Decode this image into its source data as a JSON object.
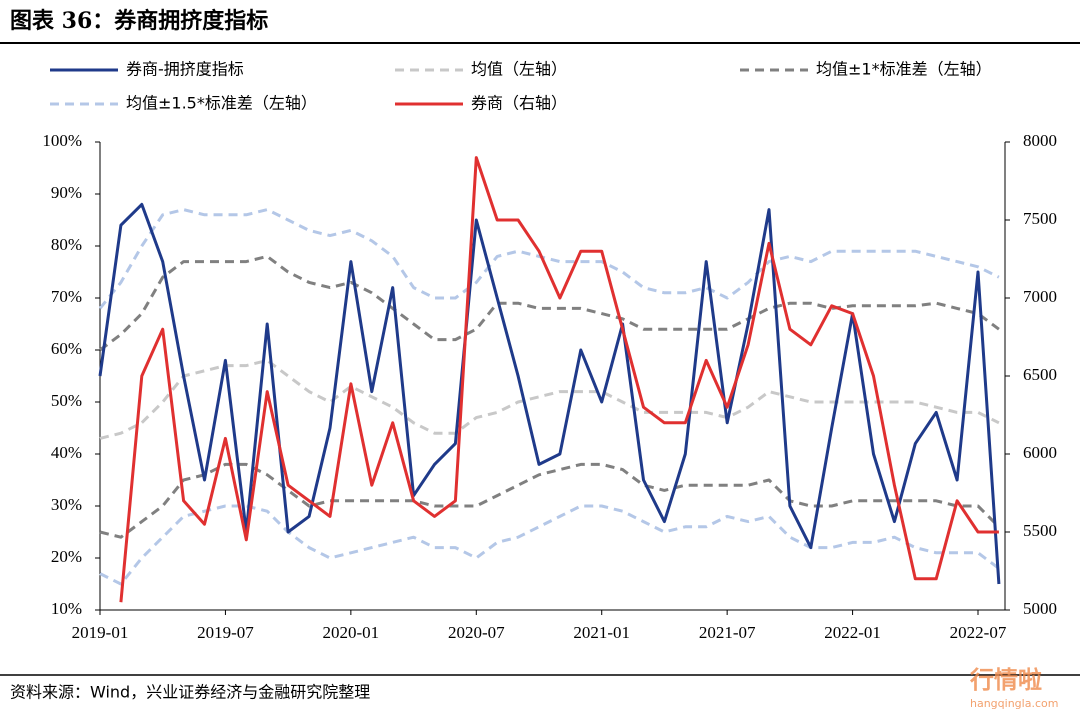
{
  "chart_data": {
    "type": "line",
    "title": "图表 36：券商拥挤度指标",
    "source": "资料来源：Wind，兴业证券经济与金融研究院整理",
    "watermark": "行情啦",
    "watermark_url": "hangqingla.com",
    "categories": [
      "2019-01",
      null,
      null,
      null,
      null,
      null,
      "2019-07",
      null,
      null,
      null,
      null,
      null,
      "2020-01",
      null,
      null,
      null,
      null,
      null,
      "2020-07",
      null,
      null,
      null,
      null,
      null,
      "2021-01",
      null,
      null,
      null,
      null,
      null,
      "2021-07",
      null,
      null,
      null,
      null,
      null,
      "2022-01",
      null,
      null,
      null,
      null,
      null,
      "2022-07",
      null
    ],
    "ylim": [
      10,
      100
    ],
    "yticks": [
      {
        "value": 10,
        "label": "10%"
      },
      {
        "value": 20,
        "label": "20%"
      },
      {
        "value": 30,
        "label": "30%"
      },
      {
        "value": 40,
        "label": "40%"
      },
      {
        "value": 50,
        "label": "50%"
      },
      {
        "value": 60,
        "label": "60%"
      },
      {
        "value": 70,
        "label": "70%"
      },
      {
        "value": 80,
        "label": "80%"
      },
      {
        "value": 90,
        "label": "90%"
      },
      {
        "value": 100,
        "label": "100%"
      }
    ],
    "y2lim": [
      5000,
      8000
    ],
    "y2ticks": [
      5000,
      5500,
      6000,
      6500,
      7000,
      7500,
      8000
    ],
    "series": [
      {
        "name": "券商-拥挤度指标",
        "color": "#1f3a8a",
        "dash": false,
        "values": [
          55,
          84,
          88,
          77,
          55,
          35,
          58,
          25,
          65,
          25,
          28,
          45,
          77,
          52,
          72,
          32,
          38,
          42,
          85,
          70,
          55,
          38,
          40,
          60,
          50,
          65,
          35,
          27,
          40,
          77,
          46,
          65,
          87,
          30,
          22,
          45,
          67,
          40,
          27,
          42,
          48,
          35,
          75,
          15
        ]
      },
      {
        "name": "均值（左轴）",
        "color": "#c8c8c8",
        "dash": true,
        "values": [
          43,
          44,
          46,
          50,
          55,
          56,
          57,
          57,
          58,
          55,
          52,
          50,
          53,
          51,
          49,
          46,
          44,
          44,
          47,
          48,
          50,
          51,
          52,
          52,
          52,
          50,
          48,
          48,
          48,
          48,
          47,
          49,
          52,
          51,
          50,
          50,
          50,
          50,
          50,
          50,
          49,
          48,
          48,
          46
        ]
      },
      {
        "name": "均值±1*标准差（左轴）",
        "color": "#808080",
        "dash": true,
        "values": [
          60,
          63,
          67,
          74,
          77,
          77,
          77,
          77,
          78,
          75,
          73,
          72,
          73,
          71,
          68,
          65,
          62,
          62,
          64,
          69,
          69,
          68,
          68,
          68,
          67,
          66,
          64,
          64,
          64,
          64,
          64,
          66,
          68,
          69,
          69,
          68,
          68.5,
          68.5,
          68.5,
          68.5,
          69,
          68,
          67,
          64
        ],
        "lower": [
          25,
          24,
          27,
          30,
          35,
          36,
          38,
          38,
          36,
          33,
          30,
          31,
          31,
          31,
          31,
          31,
          30,
          30,
          30,
          32,
          34,
          36,
          37,
          38,
          38,
          37,
          34,
          33,
          34,
          34,
          34,
          34,
          35,
          31,
          30,
          30,
          31,
          31,
          31,
          31,
          31,
          30,
          30,
          26
        ]
      },
      {
        "name": "均值±1.5*标准差（左轴）",
        "color": "#b4c7e7",
        "dash": true,
        "values": [
          68,
          73,
          80,
          86,
          87,
          86,
          86,
          86,
          87,
          85,
          83,
          82,
          83,
          81,
          78,
          72,
          70,
          70,
          73,
          78,
          79,
          78,
          77,
          77,
          77,
          75,
          72,
          71,
          71,
          72,
          70,
          73,
          77,
          78,
          77,
          79,
          79,
          79,
          79,
          79,
          78,
          77,
          76,
          74
        ],
        "lower": [
          17,
          15,
          20,
          24,
          28,
          29,
          30,
          30,
          29,
          25,
          22,
          20,
          21,
          22,
          23,
          24,
          22,
          22,
          20,
          23,
          24,
          26,
          28,
          30,
          30,
          29,
          27,
          25,
          26,
          26,
          28,
          27,
          28,
          24,
          22,
          22,
          23,
          23,
          24,
          22,
          21,
          21,
          21,
          18
        ]
      },
      {
        "name": "券商（右轴）",
        "color": "#e03030",
        "dash": false,
        "axis": "y2",
        "values": [
          null,
          5050,
          6500,
          6800,
          5700,
          5550,
          6100,
          5450,
          6400,
          5800,
          5700,
          5600,
          6450,
          5800,
          6200,
          5700,
          5600,
          5700,
          7900,
          7500,
          7500,
          7300,
          7000,
          7300,
          7300,
          6800,
          6300,
          6200,
          6200,
          6600,
          6300,
          6700,
          7350,
          6800,
          6700,
          6950,
          6900,
          6500,
          5800,
          5200,
          5200,
          5700,
          5500,
          5500
        ]
      }
    ]
  }
}
